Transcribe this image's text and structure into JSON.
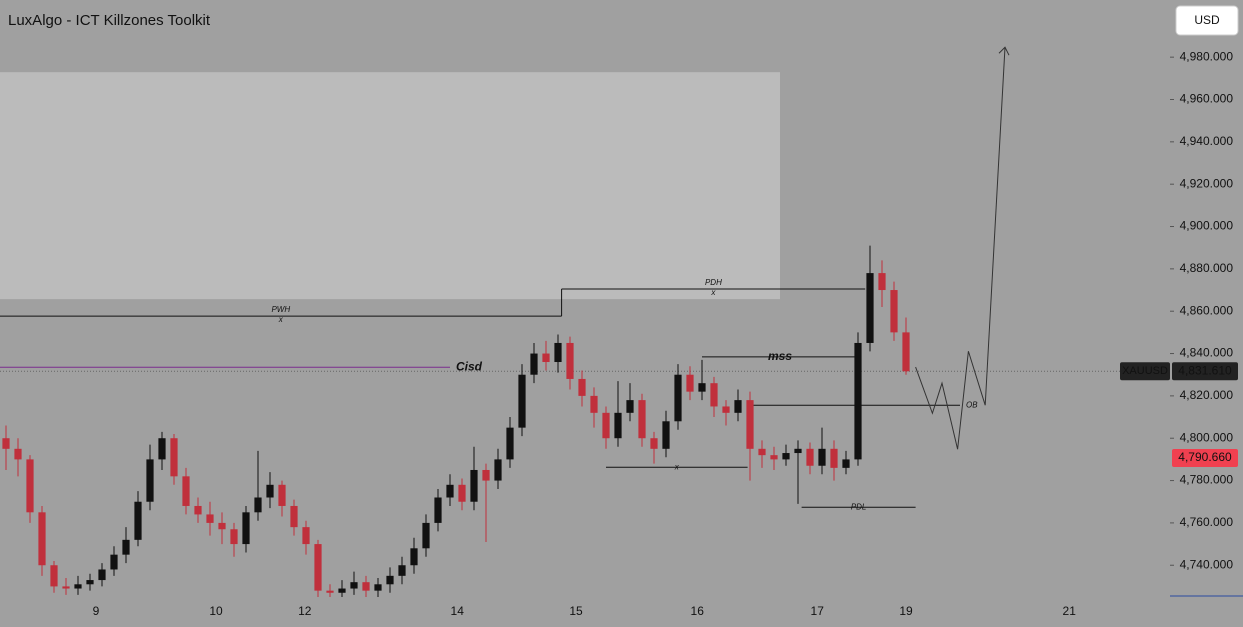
{
  "chart_data": {
    "type": "candlestick",
    "title": "LuxAlgo - ICT Killzones Toolkit",
    "currency": "USD",
    "colors": {
      "up": "#111111",
      "down": "#c0303c",
      "background": "#a0a0a0",
      "zone": "#bbbbbb"
    },
    "xlim": [
      0,
      97.5
    ],
    "ylim": [
      4725,
      5007
    ],
    "xticks": [
      {
        "value": 8,
        "label": "9"
      },
      {
        "value": 18,
        "label": "10"
      },
      {
        "value": 25.4,
        "label": "12"
      },
      {
        "value": 38.1,
        "label": "14"
      },
      {
        "value": 48,
        "label": "15"
      },
      {
        "value": 58.1,
        "label": "16"
      },
      {
        "value": 68.1,
        "label": "17"
      },
      {
        "value": 75.5,
        "label": "19"
      },
      {
        "value": 89.1,
        "label": "21"
      }
    ],
    "yticks": [
      {
        "value": 4740,
        "label": "4,740.000"
      },
      {
        "value": 4760,
        "label": "4,760.000"
      },
      {
        "value": 4780,
        "label": "4,780.000"
      },
      {
        "value": 4800,
        "label": "4,800.000"
      },
      {
        "value": 4820,
        "label": "4,820.000"
      },
      {
        "value": 4840,
        "label": "4,840.000"
      },
      {
        "value": 4860,
        "label": "4,860.000"
      },
      {
        "value": 4880,
        "label": "4,880.000"
      },
      {
        "value": 4900,
        "label": "4,900.000"
      },
      {
        "value": 4920,
        "label": "4,920.000"
      },
      {
        "value": 4940,
        "label": "4,940.000"
      },
      {
        "value": 4960,
        "label": "4,960.000"
      },
      {
        "value": 4980,
        "label": "4,980.000"
      }
    ],
    "ohlc": [
      [
        4800,
        4806,
        4785,
        4795
      ],
      [
        4795,
        4800,
        4782,
        4790
      ],
      [
        4790,
        4792,
        4760,
        4765
      ],
      [
        4765,
        4768,
        4735,
        4740
      ],
      [
        4740,
        4742,
        4727,
        4730
      ],
      [
        4730,
        4734,
        4726,
        4729
      ],
      [
        4729,
        4735,
        4726,
        4731
      ],
      [
        4731,
        4736,
        4728,
        4733
      ],
      [
        4733,
        4741,
        4730,
        4738
      ],
      [
        4738,
        4749,
        4735,
        4745
      ],
      [
        4745,
        4758,
        4741,
        4752
      ],
      [
        4752,
        4775,
        4749,
        4770
      ],
      [
        4770,
        4797,
        4766,
        4790
      ],
      [
        4790,
        4803,
        4785,
        4800
      ],
      [
        4800,
        4802,
        4778,
        4782
      ],
      [
        4782,
        4786,
        4764,
        4768
      ],
      [
        4768,
        4772,
        4760,
        4764
      ],
      [
        4764,
        4770,
        4754,
        4760
      ],
      [
        4760,
        4765,
        4750,
        4757
      ],
      [
        4757,
        4760,
        4744,
        4750
      ],
      [
        4750,
        4768,
        4746,
        4765
      ],
      [
        4765,
        4794,
        4761,
        4772
      ],
      [
        4772,
        4784,
        4767,
        4778
      ],
      [
        4778,
        4780,
        4763,
        4768
      ],
      [
        4768,
        4771,
        4754,
        4758
      ],
      [
        4758,
        4761,
        4745,
        4750
      ],
      [
        4750,
        4752,
        4725,
        4728
      ],
      [
        4728,
        4731,
        4725,
        4727
      ],
      [
        4727,
        4733,
        4725,
        4729
      ],
      [
        4729,
        4737,
        4726,
        4732
      ],
      [
        4732,
        4735,
        4725,
        4728
      ],
      [
        4728,
        4734,
        4725,
        4731
      ],
      [
        4731,
        4739,
        4727,
        4735
      ],
      [
        4735,
        4744,
        4731,
        4740
      ],
      [
        4740,
        4753,
        4736,
        4748
      ],
      [
        4748,
        4764,
        4744,
        4760
      ],
      [
        4760,
        4776,
        4756,
        4772
      ],
      [
        4772,
        4783,
        4768,
        4778
      ],
      [
        4778,
        4781,
        4766,
        4770
      ],
      [
        4770,
        4796,
        4766,
        4785
      ],
      [
        4785,
        4788,
        4751,
        4780
      ],
      [
        4780,
        4795,
        4776,
        4790
      ],
      [
        4790,
        4810,
        4786,
        4805
      ],
      [
        4805,
        4835,
        4801,
        4830
      ],
      [
        4830,
        4845,
        4826,
        4840
      ],
      [
        4840,
        4846,
        4832,
        4836
      ],
      [
        4836,
        4849,
        4831,
        4845
      ],
      [
        4845,
        4848,
        4823,
        4828
      ],
      [
        4828,
        4832,
        4815,
        4820
      ],
      [
        4820,
        4824,
        4805,
        4812
      ],
      [
        4812,
        4815,
        4795,
        4800
      ],
      [
        4800,
        4827,
        4796,
        4812
      ],
      [
        4812,
        4826,
        4808,
        4818
      ],
      [
        4818,
        4821,
        4796,
        4800
      ],
      [
        4800,
        4803,
        4788,
        4795
      ],
      [
        4795,
        4813,
        4791,
        4808
      ],
      [
        4808,
        4835,
        4804,
        4830
      ],
      [
        4830,
        4834,
        4818,
        4822
      ],
      [
        4822,
        4837,
        4818,
        4826
      ],
      [
        4826,
        4829,
        4810,
        4815
      ],
      [
        4815,
        4818,
        4806,
        4812
      ],
      [
        4812,
        4823,
        4808,
        4818
      ],
      [
        4818,
        4822,
        4780,
        4795
      ],
      [
        4795,
        4799,
        4786,
        4792
      ],
      [
        4792,
        4796,
        4785,
        4790
      ],
      [
        4790,
        4797,
        4787,
        4793
      ],
      [
        4793,
        4799,
        4769,
        4795
      ],
      [
        4795,
        4798,
        4783,
        4787
      ],
      [
        4787,
        4805,
        4783,
        4795
      ],
      [
        4795,
        4799,
        4780,
        4786
      ],
      [
        4786,
        4794,
        4783,
        4790
      ],
      [
        4790,
        4850,
        4787,
        4845
      ],
      [
        4845,
        4891,
        4841,
        4878
      ],
      [
        4878,
        4884,
        4862,
        4870
      ],
      [
        4870,
        4874,
        4846,
        4850
      ],
      [
        4850,
        4857,
        4830,
        4831.61
      ]
    ],
    "zone": {
      "low": 4865.7,
      "high": 4972.9,
      "x": [
        0,
        65
      ]
    },
    "levels": [
      {
        "label": "PWH",
        "marker": "x",
        "value": 4857.7,
        "x": [
          0,
          46.8
        ],
        "color": "#111111",
        "label_color": "#d03040",
        "label_at": "middle"
      },
      {
        "label": "PDH",
        "marker": "x",
        "value": 4870.5,
        "x": [
          46.8,
          72.1
        ],
        "color": "#111111",
        "label_color": "#d03040",
        "label_at": "middle"
      },
      {
        "label": "mss",
        "value": 4838.4,
        "x": [
          58.5,
          71.5
        ],
        "color": "#111111",
        "label_color": "#ffffff",
        "label_at": "middle"
      },
      {
        "label": "Cisd",
        "value": 4833.5,
        "x": [
          0,
          37.5
        ],
        "color": "#7b2d8e",
        "label_color": "#ffffff",
        "label_at": "end"
      },
      {
        "label": "OB",
        "value": 4815.6,
        "x": [
          62.3,
          80
        ],
        "color": "#111111",
        "label_color": "#d03040",
        "label_at": "end"
      },
      {
        "label": "x",
        "value": 4786.3,
        "x": [
          50.5,
          62.3
        ],
        "color": "#111111",
        "label_color": "#d03040",
        "label_at": "middle"
      },
      {
        "label": "PDL",
        "value": 4767.4,
        "x": [
          66.8,
          76.3
        ],
        "color": "#111111",
        "label_color": "#d03040",
        "label_at": "middle"
      }
    ],
    "projection": {
      "x": [
        76.3,
        77.7,
        78.5,
        79.8,
        80.7,
        82.1,
        83.75
      ],
      "y": [
        4833.6,
        4811.8,
        4826.0,
        4794.8,
        4841.1,
        4815.6,
        4984.7
      ]
    },
    "price_tags": [
      {
        "name": "XAUUSD",
        "value": 4831.61,
        "label": "4,831.610",
        "color": "#222222"
      },
      {
        "value": 4790.66,
        "label": "4,790.660",
        "color": "#f04050"
      }
    ]
  }
}
